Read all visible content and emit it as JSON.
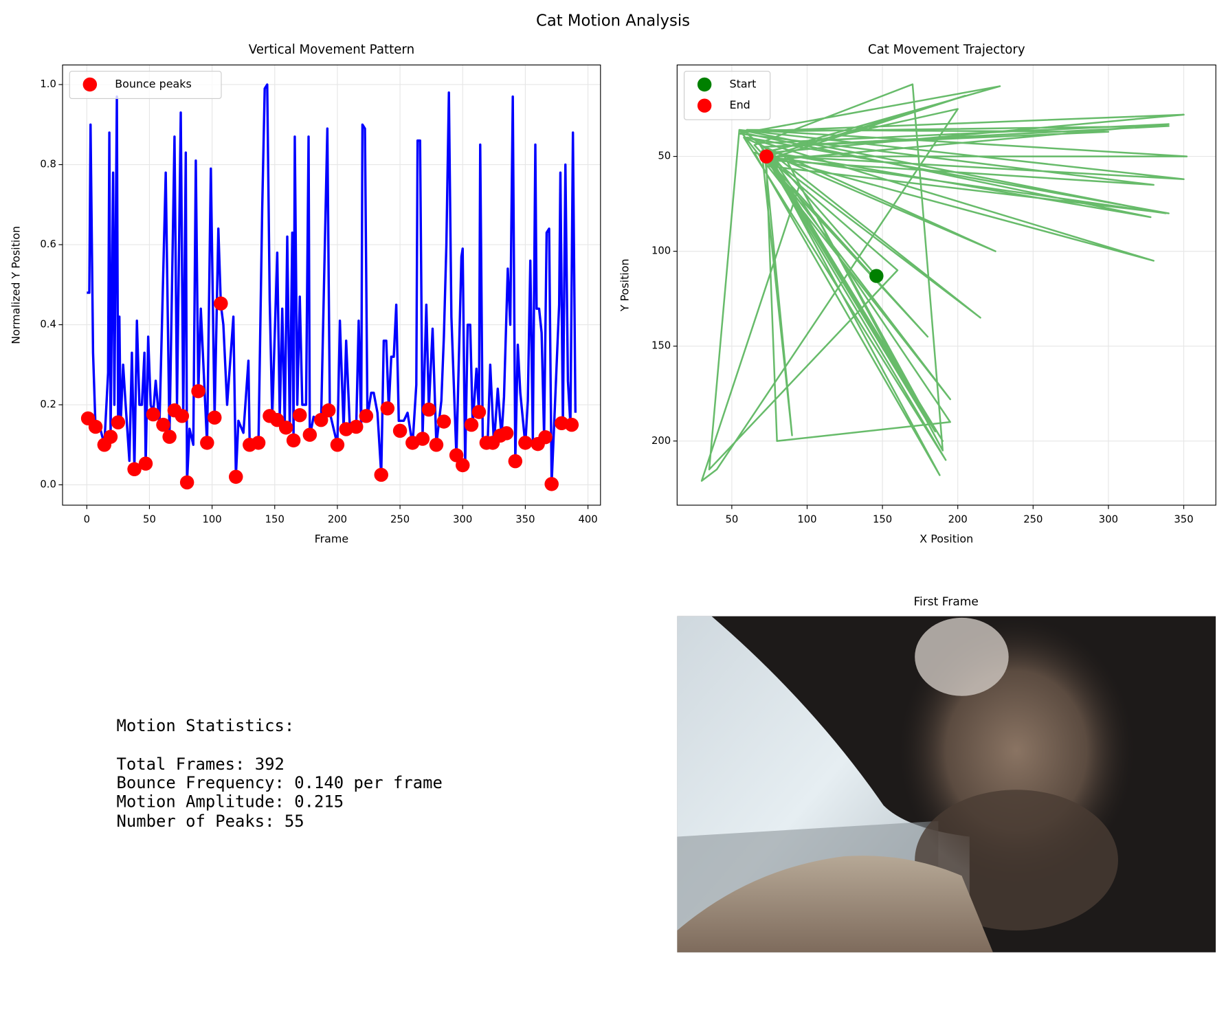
{
  "title": "Cat Motion Analysis",
  "chart_data": [
    {
      "type": "line",
      "title": "Vertical Movement Pattern",
      "xlabel": "Frame",
      "ylabel": "Normalized Y Position",
      "xlim": [
        -19.35,
        410
      ],
      "ylim": [
        -0.0508,
        1.049
      ],
      "xticks": [
        0,
        50,
        100,
        150,
        200,
        250,
        300,
        350,
        400
      ],
      "yticks": [
        {
          "value": 0,
          "label": "0.0"
        },
        0.2,
        0.4,
        0.6,
        0.8,
        {
          "value": 1,
          "label": "1.0"
        }
      ],
      "grid": true,
      "legend": "upper left",
      "series": [
        {
          "color": "#0000ff",
          "x": [
            0,
            2,
            3,
            5,
            7,
            10,
            14,
            17,
            18,
            19,
            21,
            22,
            24,
            25,
            26,
            27,
            29,
            31,
            34,
            36,
            38,
            40,
            42,
            44,
            46,
            47,
            49,
            51,
            53,
            55,
            58,
            63,
            66,
            70,
            72,
            75,
            77,
            79,
            80,
            82,
            85,
            87,
            89,
            91,
            96,
            99,
            102,
            105,
            107,
            109,
            112,
            117,
            119,
            121,
            125,
            129,
            130,
            137,
            140,
            142,
            144,
            146,
            148,
            152,
            154,
            156,
            158,
            160,
            162,
            164,
            165,
            166,
            168,
            170,
            172,
            175,
            177,
            178,
            181,
            187,
            190,
            192,
            194,
            197,
            200,
            202,
            205,
            207,
            210,
            215,
            217,
            219,
            220,
            222,
            224,
            227,
            229,
            232,
            235,
            237,
            239,
            241,
            243,
            245,
            247,
            249,
            253,
            256,
            260,
            263,
            264,
            266,
            268,
            271,
            273,
            276,
            279,
            283,
            285,
            287,
            289,
            291,
            295,
            299,
            300,
            302,
            304,
            306,
            308,
            311,
            313,
            314,
            316,
            320,
            322,
            325,
            328,
            331,
            333,
            336,
            338,
            340,
            342,
            344,
            346,
            350,
            352,
            354,
            356,
            358,
            359,
            361,
            363,
            365,
            367,
            369,
            371,
            373,
            377,
            378,
            380,
            382,
            384,
            386,
            388,
            390
          ],
          "values": [
            0.48,
            0.48,
            0.9,
            0.33,
            0.14,
            0.15,
            0.1,
            0.28,
            0.88,
            0.12,
            0.78,
            0.2,
            0.97,
            0.156,
            0.42,
            0.15,
            0.3,
            0.2,
            0.06,
            0.33,
            0.04,
            0.41,
            0.2,
            0.2,
            0.33,
            0.05,
            0.37,
            0.2,
            0.18,
            0.26,
            0.15,
            0.78,
            0.12,
            0.87,
            0.2,
            0.93,
            0.17,
            0.83,
            0.006,
            0.14,
            0.1,
            0.81,
            0.23,
            0.44,
            0.1,
            0.79,
            0.17,
            0.64,
            0.45,
            0.4,
            0.2,
            0.42,
            0.02,
            0.16,
            0.13,
            0.31,
            0.1,
            0.1,
            0.69,
            0.99,
            1.0,
            0.46,
            0.17,
            0.58,
            0.17,
            0.44,
            0.15,
            0.62,
            0.14,
            0.63,
            0.11,
            0.87,
            0.2,
            0.47,
            0.2,
            0.2,
            0.87,
            0.12,
            0.17,
            0.16,
            0.6,
            0.89,
            0.18,
            0.14,
            0.1,
            0.41,
            0.14,
            0.36,
            0.14,
            0.14,
            0.41,
            0.14,
            0.9,
            0.89,
            0.17,
            0.23,
            0.23,
            0.18,
            0.025,
            0.36,
            0.36,
            0.19,
            0.32,
            0.32,
            0.45,
            0.16,
            0.16,
            0.18,
            0.1,
            0.25,
            0.86,
            0.86,
            0.12,
            0.45,
            0.19,
            0.39,
            0.1,
            0.21,
            0.37,
            0.6,
            0.98,
            0.42,
            0.07,
            0.57,
            0.59,
            0.05,
            0.4,
            0.4,
            0.15,
            0.29,
            0.18,
            0.85,
            0.12,
            0.11,
            0.3,
            0.1,
            0.24,
            0.12,
            0.22,
            0.54,
            0.4,
            0.97,
            0.06,
            0.35,
            0.23,
            0.1,
            0.21,
            0.56,
            0.11,
            0.85,
            0.44,
            0.44,
            0.38,
            0.12,
            0.63,
            0.64,
            0.002,
            0.15,
            0.45,
            0.78,
            0.15,
            0.8,
            0.26,
            0.15,
            0.88,
            0.18
          ]
        },
        {
          "name": "Bounce peaks",
          "type": "scatter",
          "color": "#ff0000",
          "x": [
            1,
            7,
            14,
            19,
            25,
            38,
            47,
            53,
            61,
            66,
            70,
            76,
            80,
            89,
            96,
            102,
            107,
            119,
            130,
            137,
            146,
            152,
            159,
            165,
            170,
            178,
            187,
            193,
            200,
            207,
            215,
            223,
            235,
            240,
            250,
            260,
            268,
            273,
            279,
            285,
            295,
            300,
            307,
            313,
            319,
            324,
            330,
            335,
            342,
            350,
            360,
            366,
            371,
            379,
            387
          ],
          "values": [
            0.166,
            0.145,
            0.1,
            0.12,
            0.156,
            0.039,
            0.053,
            0.176,
            0.15,
            0.12,
            0.186,
            0.172,
            0.006,
            0.234,
            0.105,
            0.168,
            0.453,
            0.02,
            0.1,
            0.105,
            0.172,
            0.162,
            0.143,
            0.111,
            0.174,
            0.125,
            0.162,
            0.186,
            0.1,
            0.139,
            0.145,
            0.172,
            0.025,
            0.191,
            0.135,
            0.105,
            0.115,
            0.188,
            0.1,
            0.158,
            0.074,
            0.049,
            0.15,
            0.182,
            0.105,
            0.105,
            0.123,
            0.129,
            0.059,
            0.105,
            0.102,
            0.119,
            0.002,
            0.154,
            0.15
          ]
        }
      ]
    },
    {
      "type": "line",
      "title": "Cat Movement Trajectory",
      "xlabel": "X Position",
      "ylabel": "Y Position",
      "xlim": [
        13.7,
        371.3
      ],
      "ylim": [
        233.8,
        1.8
      ],
      "inverted_y": true,
      "xticks": [
        50,
        100,
        150,
        200,
        250,
        300,
        350
      ],
      "yticks": [
        50,
        100,
        150,
        200
      ],
      "grid": true,
      "legend": "upper left",
      "series": [
        {
          "color": "#4caf50",
          "x": [
            146,
            75,
            350,
            57,
            340,
            70,
            190,
            75,
            352,
            60,
            300,
            72,
            195,
            80,
            73,
            340,
            60,
            330,
            65,
            188,
            75,
            330,
            55,
            228,
            73,
            225,
            58,
            192,
            70,
            328,
            60,
            215,
            74,
            205,
            72,
            180,
            65,
            170,
            190,
            85,
            350,
            55,
            338,
            73,
            160,
            35,
            55,
            195,
            72,
            90,
            70,
            200,
            40,
            30,
            95,
            185,
            75,
            340,
            68,
            180,
            73
          ],
          "values": [
            113,
            48,
            28,
            37,
            34,
            45,
            200,
            50,
            50,
            36,
            37,
            45,
            190,
            200,
            55,
            80,
            40,
            105,
            48,
            218,
            52,
            65,
            38,
            13,
            48,
            100,
            40,
            210,
            47,
            82,
            38,
            135,
            50,
            18,
            52,
            145,
            44,
            12,
            205,
            50,
            62,
            36,
            80,
            50,
            110,
            215,
            36,
            178,
            50,
            197,
            48,
            25,
            215,
            221,
            65,
            195,
            52,
            33,
            43,
            190,
            50
          ]
        },
        {
          "name": "Start",
          "type": "scatter",
          "color": "#008000",
          "x": [
            146
          ],
          "values": [
            113
          ]
        },
        {
          "name": "End",
          "type": "scatter",
          "color": "#ff0000",
          "x": [
            73
          ],
          "values": [
            50
          ]
        }
      ]
    }
  ],
  "stats": {
    "heading": "Motion Statistics:",
    "lines": [
      "Total Frames: 392",
      "Bounce Frequency: 0.140 per frame",
      "Motion Amplitude: 0.215",
      "Number of Peaks: 55"
    ]
  },
  "image": {
    "title": "First Frame"
  }
}
